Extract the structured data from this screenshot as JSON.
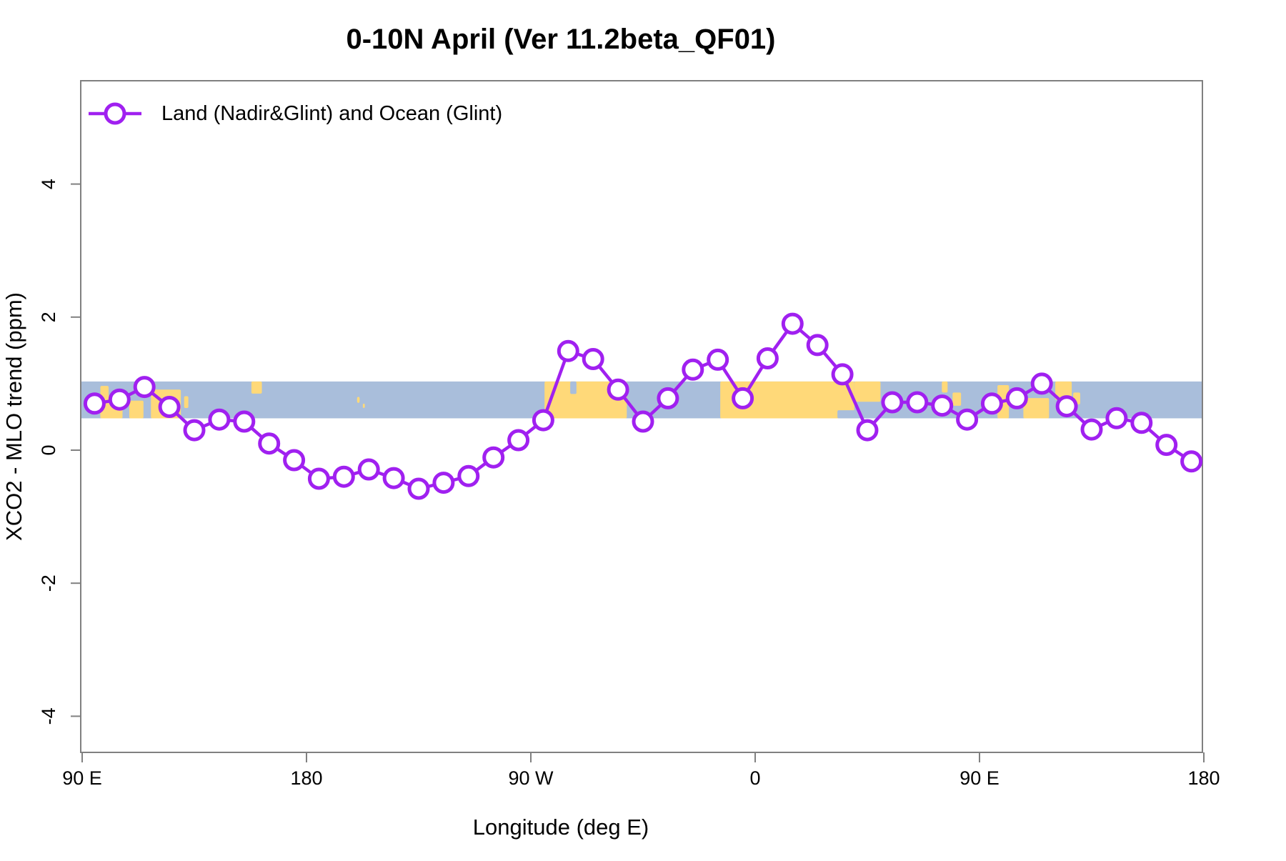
{
  "header": {
    "title": "0-10N April (Ver 11.2beta_QF01)"
  },
  "legend": {
    "label": "Land (Nadir&Glint) and Ocean (Glint)",
    "marker": "open-circle-on-line"
  },
  "colors": {
    "series_purple": "#A020F0",
    "ocean_band": "#A9BEDB",
    "land_band": "#FFD979",
    "axis_gray": "#808080",
    "text_black": "#000000",
    "marker_fill": "#FFFFFF"
  },
  "chart_data": {
    "type": "line",
    "title": "0-10N April (Ver 11.2beta_QF01)",
    "xlabel": "Longitude (deg E)",
    "ylabel": "XCO2 - MLO trend (ppm)",
    "xlim": [
      89.4,
      539.5
    ],
    "ylim": [
      -4.5,
      5.5
    ],
    "grid": "off",
    "legend_position": "top-left-inside",
    "x_ticks": [
      {
        "pos": 90,
        "label": "90 E"
      },
      {
        "pos": 180,
        "label": "180"
      },
      {
        "pos": 270,
        "label": "90 W"
      },
      {
        "pos": 360,
        "label": "0"
      },
      {
        "pos": 450,
        "label": "90 E"
      },
      {
        "pos": 540,
        "label": "180"
      }
    ],
    "y_ticks": [
      {
        "pos": -4,
        "label": "-4"
      },
      {
        "pos": -2,
        "label": "-2"
      },
      {
        "pos": 0,
        "label": "0"
      },
      {
        "pos": 2,
        "label": "2"
      },
      {
        "pos": 4,
        "label": "4"
      }
    ],
    "series": [
      {
        "name": "Land (Nadir&Glint) and Ocean (Glint)",
        "color": "#A020F0",
        "marker": "open-circle",
        "x_unit": "deg E (axis wraps 90E → 180 → 90W → 0 → 90E → 180)",
        "x": [
          95,
          105,
          115,
          125,
          135,
          145,
          155,
          165,
          175,
          185,
          195,
          205,
          215,
          225,
          235,
          245,
          255,
          265,
          275,
          285,
          295,
          305,
          315,
          325,
          335,
          345,
          355,
          365,
          375,
          385,
          395,
          405,
          415,
          425,
          435,
          445,
          455,
          465,
          475,
          485,
          495,
          505,
          515,
          525,
          535
        ],
        "values": [
          0.7,
          0.76,
          0.95,
          0.65,
          0.3,
          0.46,
          0.43,
          0.1,
          -0.15,
          -0.43,
          -0.4,
          -0.29,
          -0.42,
          -0.58,
          -0.49,
          -0.39,
          -0.11,
          0.15,
          0.45,
          1.49,
          1.37,
          0.91,
          0.43,
          0.78,
          1.21,
          1.36,
          0.78,
          1.38,
          1.9,
          1.58,
          1.14,
          0.3,
          0.72,
          0.72,
          0.67,
          0.46,
          0.7,
          0.78,
          1.0,
          0.66,
          0.31,
          0.48,
          0.41,
          0.08,
          -0.17
        ]
      }
    ],
    "map_band": {
      "description": "horizontal strip showing ocean (blue) and land (orange) along 0-10N",
      "y_range": [
        0.5,
        1.0
      ],
      "ocean_color": "#A9BEDB",
      "land_color": "#FFD979",
      "land_segments": [
        {
          "x0": 97.3,
          "x1": 100.6,
          "f0": 0.12,
          "f1": 1.0
        },
        {
          "x0": 99.6,
          "x1": 106.2,
          "f0": 0.38,
          "f1": 1.0
        },
        {
          "x0": 108.9,
          "x1": 114.6,
          "f0": 0.52,
          "f1": 1.0
        },
        {
          "x0": 117.6,
          "x1": 129.6,
          "f0": 0.22,
          "f1": 1.0
        },
        {
          "x0": 130.9,
          "x1": 132.6,
          "f0": 0.4,
          "f1": 0.72
        },
        {
          "x0": 157.9,
          "x1": 162.1,
          "f0": 0.0,
          "f1": 0.33
        },
        {
          "x0": 200.3,
          "x1": 201.3,
          "f0": 0.42,
          "f1": 0.58
        },
        {
          "x0": 202.6,
          "x1": 203.4,
          "f0": 0.6,
          "f1": 0.72
        },
        {
          "x0": 275.5,
          "x1": 308.5,
          "f0": 0.0,
          "f1": 1.0
        },
        {
          "x0": 346.0,
          "x1": 399.8,
          "f0": 0.0,
          "f1": 1.0
        },
        {
          "x0": 399.8,
          "x1": 410.3,
          "f0": 0.0,
          "f1": 0.55
        },
        {
          "x0": 434.9,
          "x1": 437.2,
          "f0": 0.0,
          "f1": 0.3
        },
        {
          "x0": 439.2,
          "x1": 442.6,
          "f0": 0.3,
          "f1": 0.66
        },
        {
          "x0": 457.2,
          "x1": 461.8,
          "f0": 0.1,
          "f1": 1.0
        },
        {
          "x0": 463.9,
          "x1": 466.4,
          "f0": 0.35,
          "f1": 0.7
        },
        {
          "x0": 467.6,
          "x1": 477.9,
          "f0": 0.45,
          "f1": 1.0
        },
        {
          "x0": 480.4,
          "x1": 487.0,
          "f0": 0.0,
          "f1": 0.5
        },
        {
          "x0": 487.6,
          "x1": 490.4,
          "f0": 0.3,
          "f1": 0.62
        }
      ],
      "water_notches": [
        {
          "x0": 285.8,
          "x1": 288.3,
          "f0": 0.0,
          "f1": 0.34
        },
        {
          "x0": 393.0,
          "x1": 401.0,
          "f0": 0.78,
          "f1": 1.0
        }
      ]
    }
  }
}
